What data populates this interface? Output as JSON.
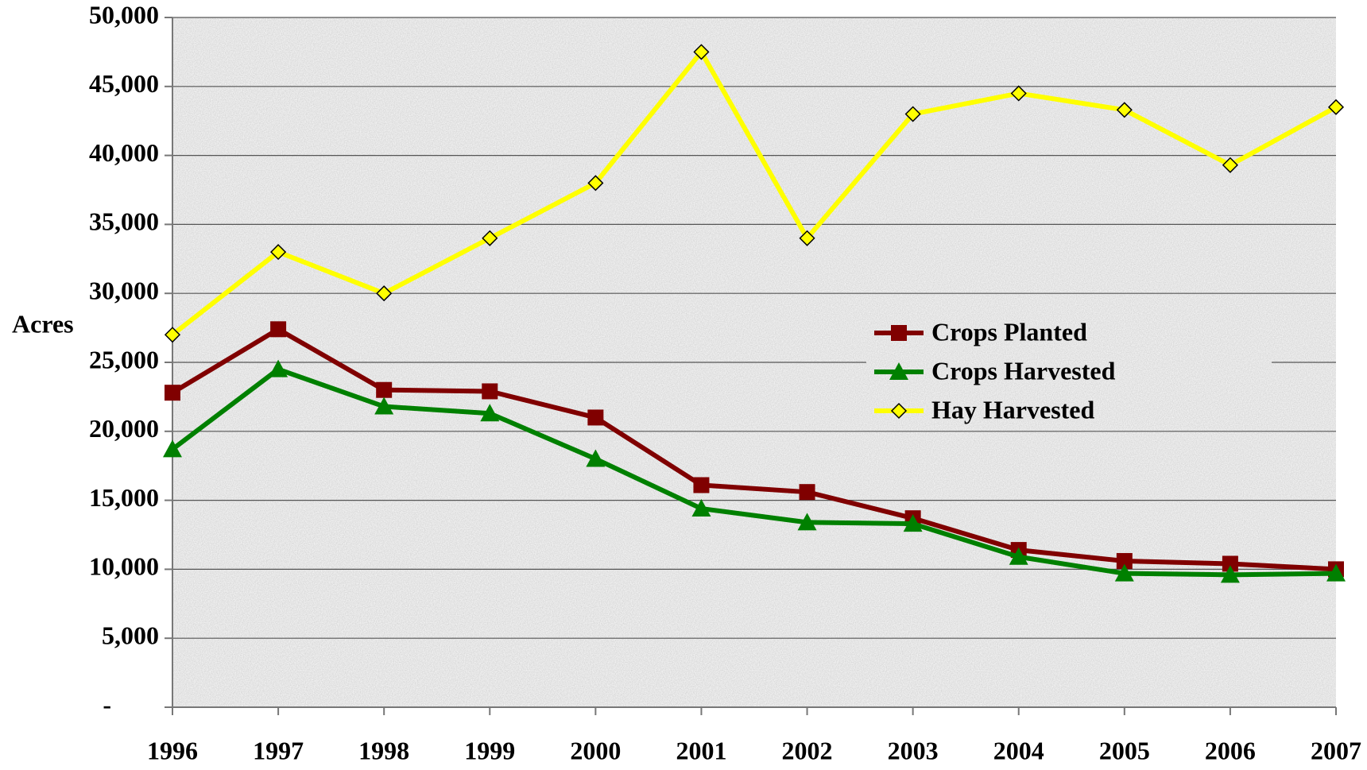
{
  "chart_data": {
    "type": "line",
    "y_label": "Acres",
    "categories": [
      "1996",
      "1997",
      "1998",
      "1999",
      "2000",
      "2001",
      "2002",
      "2003",
      "2004",
      "2005",
      "2006",
      "2007"
    ],
    "series": [
      {
        "name": "Crops Planted",
        "color": "#800000",
        "marker": "square",
        "values": [
          22800,
          27400,
          23000,
          22900,
          21000,
          16100,
          15600,
          13700,
          11400,
          10600,
          10400,
          10000
        ]
      },
      {
        "name": "Crops Harvested",
        "color": "#008000",
        "marker": "triangle",
        "values": [
          18700,
          24500,
          21800,
          21300,
          18000,
          14400,
          13400,
          13300,
          10900,
          9700,
          9600,
          9700
        ]
      },
      {
        "name": "Hay Harvested",
        "color": "#ffff00",
        "marker": "diamond",
        "values": [
          27000,
          33000,
          30000,
          34000,
          38000,
          47500,
          34000,
          43000,
          44500,
          43300,
          39300,
          43500
        ]
      }
    ],
    "ylim": [
      0,
      50000
    ],
    "yticks": [
      {
        "value": 0,
        "label": "-"
      },
      {
        "value": 5000,
        "label": "5,000"
      },
      {
        "value": 10000,
        "label": "10,000"
      },
      {
        "value": 15000,
        "label": "15,000"
      },
      {
        "value": 20000,
        "label": "20,000"
      },
      {
        "value": 25000,
        "label": "25,000"
      },
      {
        "value": 30000,
        "label": "30,000"
      },
      {
        "value": 35000,
        "label": "35,000"
      },
      {
        "value": 40000,
        "label": "40,000"
      },
      {
        "value": 45000,
        "label": "45,000"
      },
      {
        "value": 50000,
        "label": "50,000"
      }
    ],
    "grid": true,
    "legend": "center right"
  }
}
